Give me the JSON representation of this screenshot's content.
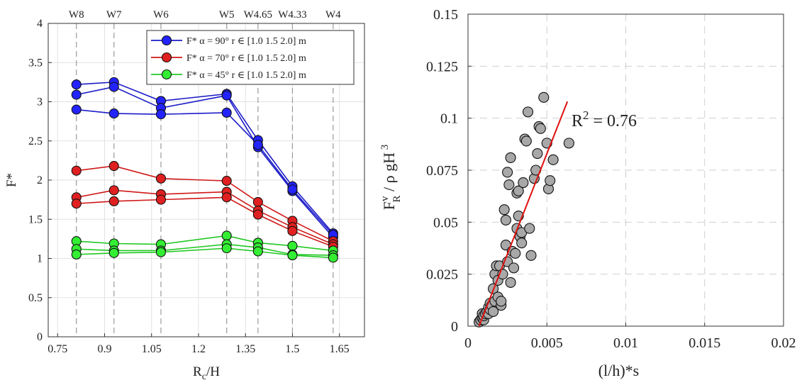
{
  "chart_data": [
    {
      "type": "line",
      "title": "",
      "xlabel": "R_c/H",
      "ylabel": "F*",
      "xlim": [
        0.72,
        1.73
      ],
      "ylim": [
        0,
        4
      ],
      "xticks": [
        "0.75",
        "0.9",
        "1.05",
        "1.2",
        "1.35",
        "1.5",
        "1.65"
      ],
      "yticks": [
        "0",
        "0.5",
        "1",
        "1.5",
        "2",
        "2.5",
        "3",
        "3.5",
        "4"
      ],
      "grid": true,
      "legend_position": "top-right",
      "top_labels": [
        {
          "label": "W8",
          "x": 0.81
        },
        {
          "label": "W7",
          "x": 0.93
        },
        {
          "label": "W6",
          "x": 1.08
        },
        {
          "label": "W5",
          "x": 1.29
        },
        {
          "label": "W4.65",
          "x": 1.39
        },
        {
          "label": "W4.33",
          "x": 1.5
        },
        {
          "label": "W4",
          "x": 1.63
        }
      ],
      "x": [
        0.81,
        0.93,
        1.08,
        1.29,
        1.39,
        1.5,
        1.63
      ],
      "series": [
        {
          "name": "F* α = 90° r ∈ [1.0 1.5 2.0] m",
          "color": "#1c1cc8",
          "marker_color": "#2323ff",
          "lines": [
            [
              3.22,
              3.25,
              3.01,
              3.1,
              2.51,
              1.92,
              1.32
            ],
            [
              3.09,
              3.19,
              2.92,
              3.08,
              2.42,
              1.86,
              1.27
            ],
            [
              2.9,
              2.85,
              2.84,
              2.86,
              2.45,
              1.88,
              1.3
            ]
          ]
        },
        {
          "name": "F* α = 70° r ∈ [1.0 1.5 2.0] m",
          "color": "#d01818",
          "marker_color": "#e02020",
          "lines": [
            [
              2.12,
              2.18,
              2.02,
              1.99,
              1.72,
              1.48,
              1.22
            ],
            [
              1.78,
              1.87,
              1.82,
              1.85,
              1.61,
              1.4,
              1.18
            ],
            [
              1.7,
              1.73,
              1.75,
              1.78,
              1.56,
              1.35,
              1.15
            ]
          ]
        },
        {
          "name": "F* α = 45° r ∈ [1.0 1.5 2.0] m",
          "color": "#22c822",
          "marker_color": "#33ee33",
          "lines": [
            [
              1.22,
              1.19,
              1.18,
              1.29,
              1.2,
              1.16,
              1.1
            ],
            [
              1.12,
              1.1,
              1.1,
              1.18,
              1.14,
              1.05,
              1.04
            ],
            [
              1.05,
              1.07,
              1.08,
              1.13,
              1.09,
              1.04,
              1.01
            ]
          ]
        }
      ]
    },
    {
      "type": "scatter",
      "title": "",
      "xlabel": "(l/h)*s",
      "ylabel": "F_R^v / ρ gH^3",
      "xlim": [
        0,
        0.02
      ],
      "ylim": [
        0,
        0.15
      ],
      "xticks": [
        "0",
        "0.005",
        "0.01",
        "0.015",
        "0.02"
      ],
      "yticks": [
        "0",
        "0.025",
        "0.05",
        "0.075",
        "0.1",
        "0.125",
        "0.15"
      ],
      "grid": true,
      "annotation": "R² = 0.76",
      "fit_line": {
        "x": [
          0.0007,
          0.0063
        ],
        "y": [
          0.0,
          0.108
        ],
        "color": "#e01010"
      },
      "points": [
        [
          0.0007,
          0.002
        ],
        [
          0.0008,
          0.003
        ],
        [
          0.0009,
          0.004
        ],
        [
          0.0009,
          0.006
        ],
        [
          0.001,
          0.003
        ],
        [
          0.001,
          0.005
        ],
        [
          0.0011,
          0.006
        ],
        [
          0.0012,
          0.007
        ],
        [
          0.0013,
          0.009
        ],
        [
          0.0013,
          0.006
        ],
        [
          0.0014,
          0.008
        ],
        [
          0.0014,
          0.011
        ],
        [
          0.0015,
          0.01
        ],
        [
          0.0016,
          0.007
        ],
        [
          0.0016,
          0.018
        ],
        [
          0.0017,
          0.012
        ],
        [
          0.0017,
          0.025
        ],
        [
          0.0018,
          0.029
        ],
        [
          0.0019,
          0.014
        ],
        [
          0.0019,
          0.022
        ],
        [
          0.002,
          0.029
        ],
        [
          0.0021,
          0.01
        ],
        [
          0.0021,
          0.012
        ],
        [
          0.0022,
          0.025
        ],
        [
          0.0023,
          0.056
        ],
        [
          0.0024,
          0.039
        ],
        [
          0.0024,
          0.051
        ],
        [
          0.0025,
          0.031
        ],
        [
          0.0025,
          0.074
        ],
        [
          0.0026,
          0.068
        ],
        [
          0.0027,
          0.081
        ],
        [
          0.0027,
          0.021
        ],
        [
          0.0028,
          0.036
        ],
        [
          0.0029,
          0.028
        ],
        [
          0.003,
          0.035
        ],
        [
          0.0031,
          0.047
        ],
        [
          0.0031,
          0.064
        ],
        [
          0.0032,
          0.065
        ],
        [
          0.0032,
          0.053
        ],
        [
          0.0033,
          0.043
        ],
        [
          0.0034,
          0.045
        ],
        [
          0.0034,
          0.04
        ],
        [
          0.0035,
          0.069
        ],
        [
          0.0036,
          0.09
        ],
        [
          0.0037,
          0.089
        ],
        [
          0.0038,
          0.103
        ],
        [
          0.0039,
          0.047
        ],
        [
          0.004,
          0.034
        ],
        [
          0.0042,
          0.071
        ],
        [
          0.0043,
          0.075
        ],
        [
          0.0044,
          0.083
        ],
        [
          0.0045,
          0.096
        ],
        [
          0.0046,
          0.095
        ],
        [
          0.0048,
          0.11
        ],
        [
          0.005,
          0.088
        ],
        [
          0.0051,
          0.066
        ],
        [
          0.0052,
          0.07
        ],
        [
          0.0054,
          0.08
        ],
        [
          0.0064,
          0.088
        ]
      ]
    }
  ]
}
